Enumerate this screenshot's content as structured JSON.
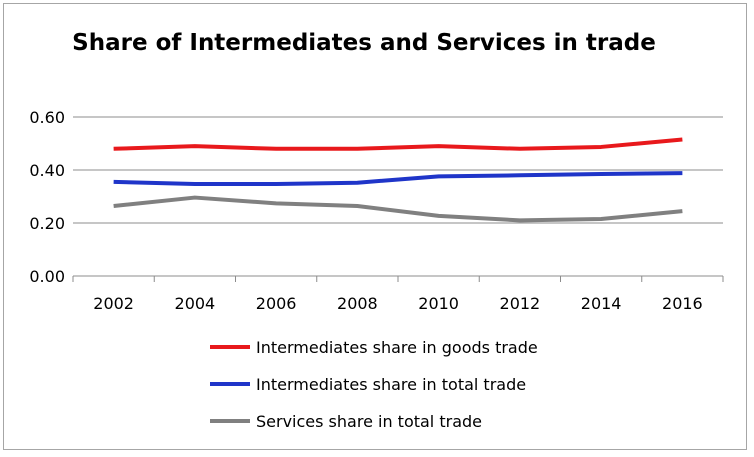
{
  "chart_data": {
    "type": "line",
    "title": "Share of Intermediates and Services in trade",
    "xlabel": "",
    "ylabel": "",
    "x": [
      "2002",
      "2004",
      "2006",
      "2008",
      "2010",
      "2012",
      "2014",
      "2016"
    ],
    "y_ticks": [
      "0.00",
      "0.20",
      "0.40",
      "0.60"
    ],
    "ylim": [
      0,
      0.6
    ],
    "grid": true,
    "legend_position": "bottom",
    "series": [
      {
        "name": "Intermediates share in goods trade",
        "color": "#e8191c",
        "values": [
          0.48,
          0.49,
          0.48,
          0.48,
          0.49,
          0.48,
          0.487,
          0.515
        ]
      },
      {
        "name": "Intermediates share in total trade",
        "color": "#1f35c9",
        "values": [
          0.355,
          0.347,
          0.347,
          0.352,
          0.376,
          0.38,
          0.385,
          0.388
        ]
      },
      {
        "name": "Services share in total trade",
        "color": "#808080",
        "values": [
          0.264,
          0.296,
          0.274,
          0.264,
          0.227,
          0.21,
          0.215,
          0.245
        ]
      }
    ]
  }
}
